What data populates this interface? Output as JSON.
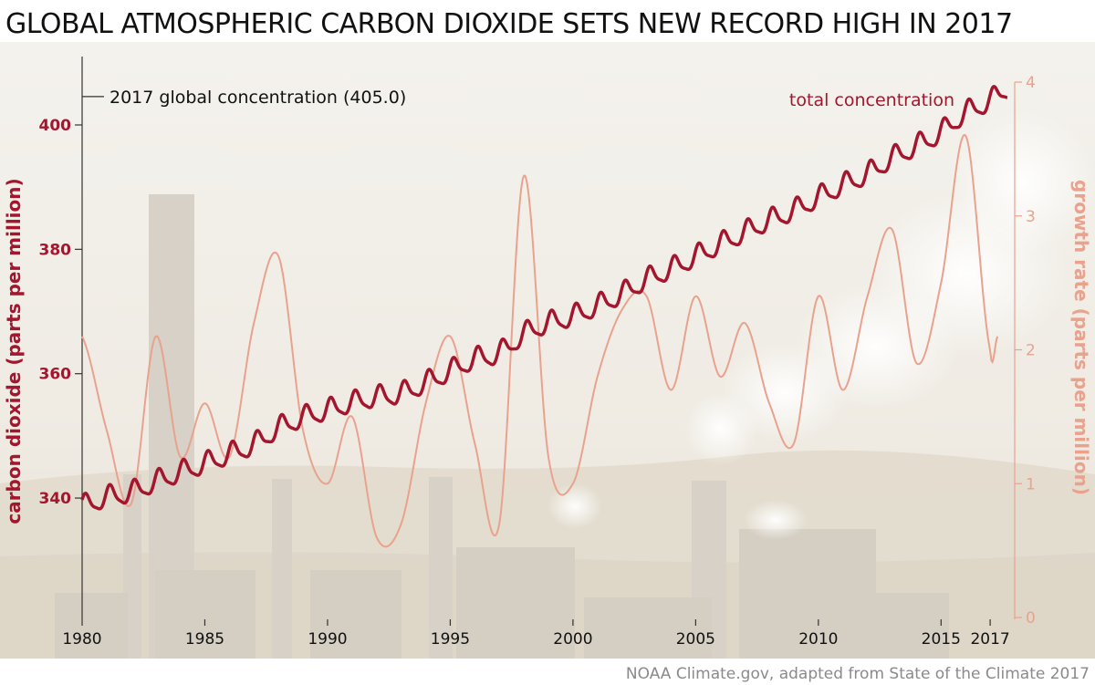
{
  "title": "GLOBAL ATMOSPHERIC CARBON DIOXIDE SETS NEW RECORD HIGH IN 2017",
  "credit": "NOAA Climate.gov, adapted from State of the Climate 2017",
  "colors": {
    "concentration": "#a3162e",
    "growth": "#e8a28e",
    "axis": "#333333",
    "background_sky": "#f2efe8",
    "background_ground": "#e6e0d4"
  },
  "chart_data": {
    "type": "line",
    "xlabel": "",
    "x_ticks": [
      1980,
      1985,
      1990,
      1995,
      2000,
      2005,
      2010,
      2015,
      2017
    ],
    "xlim": [
      1980,
      2018
    ],
    "y_left": {
      "label": "carbon dioxide (parts per million)",
      "ticks": [
        340,
        360,
        380,
        400
      ],
      "lim": [
        320.5,
        411
      ]
    },
    "y_right": {
      "label": "growth rate (parts per million)",
      "ticks": [
        0,
        1,
        2,
        3,
        4
      ],
      "lim": [
        0,
        4
      ]
    },
    "annotations": {
      "concentration_label": "total concentration",
      "record_2017": "2017 global concentration (405.0)",
      "record_value": 405.0
    },
    "series": [
      {
        "name": "total concentration",
        "axis": "left",
        "seasonal_amplitude": 1.6,
        "x": [
          1980,
          1981,
          1982,
          1983,
          1984,
          1985,
          1986,
          1987,
          1988,
          1989,
          1990,
          1991,
          1992,
          1993,
          1994,
          1995,
          1996,
          1997,
          1998,
          1999,
          2000,
          2001,
          2002,
          2003,
          2004,
          2005,
          2006,
          2007,
          2008,
          2009,
          2010,
          2011,
          2012,
          2013,
          2014,
          2015,
          2016,
          2017,
          2017.7
        ],
        "values": [
          338.7,
          340.1,
          340.9,
          342.6,
          344.1,
          345.5,
          347.0,
          348.6,
          351.2,
          352.9,
          354.1,
          355.3,
          356.2,
          356.8,
          358.5,
          360.4,
          362.3,
          363.3,
          366.3,
          368.1,
          369.2,
          370.9,
          372.8,
          375.1,
          376.8,
          378.8,
          380.8,
          382.7,
          384.6,
          386.2,
          388.3,
          390.3,
          392.1,
          394.6,
          396.6,
          398.8,
          401.9,
          403.8,
          405.8
        ]
      },
      {
        "name": "growth rate",
        "axis": "right",
        "x": [
          1980,
          1981,
          1982,
          1983,
          1984,
          1985,
          1986,
          1987,
          1988,
          1989,
          1990,
          1991,
          1992,
          1993,
          1994,
          1995,
          1996,
          1997,
          1998,
          1999,
          2000,
          2001,
          2002,
          2003,
          2004,
          2005,
          2006,
          2007,
          2008,
          2009,
          2010,
          2011,
          2012,
          2013,
          2014,
          2015,
          2016,
          2017,
          2017.3
        ],
        "values": [
          2.1,
          1.4,
          0.85,
          2.1,
          1.2,
          1.6,
          1.2,
          2.2,
          2.7,
          1.4,
          1.0,
          1.5,
          0.6,
          0.7,
          1.6,
          2.1,
          1.3,
          0.7,
          3.3,
          1.2,
          1.0,
          1.8,
          2.3,
          2.4,
          1.7,
          2.4,
          1.8,
          2.2,
          1.6,
          1.3,
          2.4,
          1.7,
          2.4,
          2.9,
          1.9,
          2.5,
          3.6,
          2.0,
          2.1
        ]
      }
    ]
  }
}
